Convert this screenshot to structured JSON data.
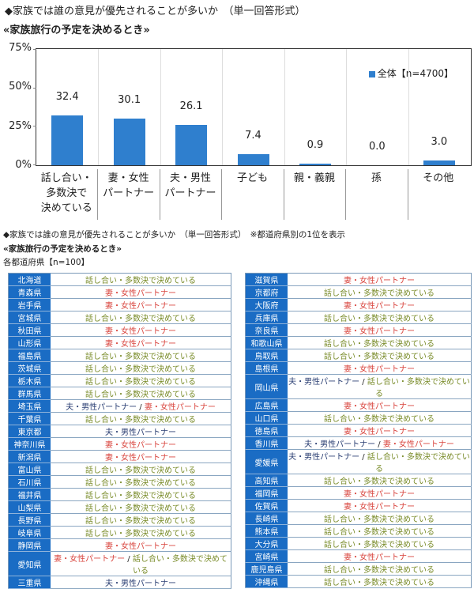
{
  "header": {
    "title": "◆家族では誰の意見が優先されることが多いか　（単一回答形式）",
    "subtitle": "«家族旅行の予定を決めるとき»"
  },
  "chart_data": {
    "type": "bar",
    "title": "家族では誰の意見が優先されることが多いか（単一回答形式）",
    "subtitle": "«家族旅行の予定を決めるとき»",
    "categories": [
      "話し合い・多数決で決めている",
      "妻・女性パートナー",
      "夫・男性パートナー",
      "子ども",
      "親・義親",
      "孫",
      "その他"
    ],
    "category_lines": [
      [
        "話し合い・",
        "多数決で",
        "決めている"
      ],
      [
        "妻・女性",
        "パートナー"
      ],
      [
        "夫・男性",
        "パートナー"
      ],
      [
        "子ども"
      ],
      [
        "親・義親"
      ],
      [
        "孫"
      ],
      [
        "その他"
      ]
    ],
    "series": [
      {
        "name": "全体【n=4700】",
        "values": [
          32.4,
          30.1,
          26.1,
          7.4,
          0.9,
          0.0,
          3.0
        ],
        "color": "#2f7fce"
      }
    ],
    "value_labels": [
      "32.4",
      "30.1",
      "26.1",
      "7.4",
      "0.9",
      "0.0",
      "3.0"
    ],
    "yticks": [
      "0%",
      "25%",
      "50%",
      "75%"
    ],
    "ylim": [
      0,
      75
    ],
    "xlabel": "",
    "ylabel": "",
    "grid": false,
    "legend_position": "top-right"
  },
  "legend": {
    "label": "全体【n=4700】"
  },
  "section2": {
    "title": "◆家族では誰の意見が優先されることが多いか　（単一回答形式）　※都道府県別の1位を表示",
    "subtitle": "«家族旅行の予定を決めるとき»",
    "sample": "各都道府県【n=100】"
  },
  "answers": {
    "talk": "話し合い・多数決で決めている",
    "wife": "妻・女性パートナー",
    "husband": "夫・男性パートナー",
    "sep": " / "
  },
  "colors": {
    "talk": "#7a8c2a",
    "wife": "#d9463f",
    "husband": "#2b3f73",
    "label_bg": "#1a6cc4"
  },
  "prefectures_left": [
    {
      "name": "北海道",
      "answer": [
        "talk"
      ]
    },
    {
      "name": "青森県",
      "answer": [
        "wife"
      ]
    },
    {
      "name": "岩手県",
      "answer": [
        "wife"
      ]
    },
    {
      "name": "宮城県",
      "answer": [
        "talk"
      ]
    },
    {
      "name": "秋田県",
      "answer": [
        "wife"
      ]
    },
    {
      "name": "山形県",
      "answer": [
        "wife"
      ]
    },
    {
      "name": "福島県",
      "answer": [
        "talk"
      ]
    },
    {
      "name": "茨城県",
      "answer": [
        "talk"
      ]
    },
    {
      "name": "栃木県",
      "answer": [
        "talk"
      ]
    },
    {
      "name": "群馬県",
      "answer": [
        "talk"
      ]
    },
    {
      "name": "埼玉県",
      "answer": [
        "husband",
        "wife"
      ]
    },
    {
      "name": "千葉県",
      "answer": [
        "talk"
      ]
    },
    {
      "name": "東京都",
      "answer": [
        "husband"
      ]
    },
    {
      "name": "神奈川県",
      "answer": [
        "wife"
      ]
    },
    {
      "name": "新潟県",
      "answer": [
        "wife"
      ]
    },
    {
      "name": "富山県",
      "answer": [
        "talk"
      ]
    },
    {
      "name": "石川県",
      "answer": [
        "talk"
      ]
    },
    {
      "name": "福井県",
      "answer": [
        "talk"
      ]
    },
    {
      "name": "山梨県",
      "answer": [
        "talk"
      ]
    },
    {
      "name": "長野県",
      "answer": [
        "talk"
      ]
    },
    {
      "name": "岐阜県",
      "answer": [
        "talk"
      ]
    },
    {
      "name": "静岡県",
      "answer": [
        "wife"
      ]
    },
    {
      "name": "愛知県",
      "answer": [
        "wife",
        "talk"
      ]
    },
    {
      "name": "三重県",
      "answer": [
        "husband"
      ]
    }
  ],
  "prefectures_right": [
    {
      "name": "滋賀県",
      "answer": [
        "wife"
      ]
    },
    {
      "name": "京都府",
      "answer": [
        "talk"
      ]
    },
    {
      "name": "大阪府",
      "answer": [
        "wife"
      ]
    },
    {
      "name": "兵庫県",
      "answer": [
        "talk"
      ]
    },
    {
      "name": "奈良県",
      "answer": [
        "wife"
      ]
    },
    {
      "name": "和歌山県",
      "answer": [
        "talk"
      ]
    },
    {
      "name": "鳥取県",
      "answer": [
        "talk"
      ]
    },
    {
      "name": "島根県",
      "answer": [
        "wife"
      ]
    },
    {
      "name": "岡山県",
      "answer": [
        "husband",
        "talk"
      ]
    },
    {
      "name": "広島県",
      "answer": [
        "wife"
      ]
    },
    {
      "name": "山口県",
      "answer": [
        "talk"
      ]
    },
    {
      "name": "徳島県",
      "answer": [
        "wife"
      ]
    },
    {
      "name": "香川県",
      "answer": [
        "husband",
        "wife"
      ]
    },
    {
      "name": "愛媛県",
      "answer": [
        "husband",
        "talk"
      ]
    },
    {
      "name": "高知県",
      "answer": [
        "talk"
      ]
    },
    {
      "name": "福岡県",
      "answer": [
        "wife"
      ]
    },
    {
      "name": "佐賀県",
      "answer": [
        "wife"
      ]
    },
    {
      "name": "長崎県",
      "answer": [
        "talk"
      ]
    },
    {
      "name": "熊本県",
      "answer": [
        "talk"
      ]
    },
    {
      "name": "大分県",
      "answer": [
        "talk"
      ]
    },
    {
      "name": "宮崎県",
      "answer": [
        "wife"
      ]
    },
    {
      "name": "鹿児島県",
      "answer": [
        "talk"
      ]
    },
    {
      "name": "沖縄県",
      "answer": [
        "talk"
      ]
    }
  ]
}
